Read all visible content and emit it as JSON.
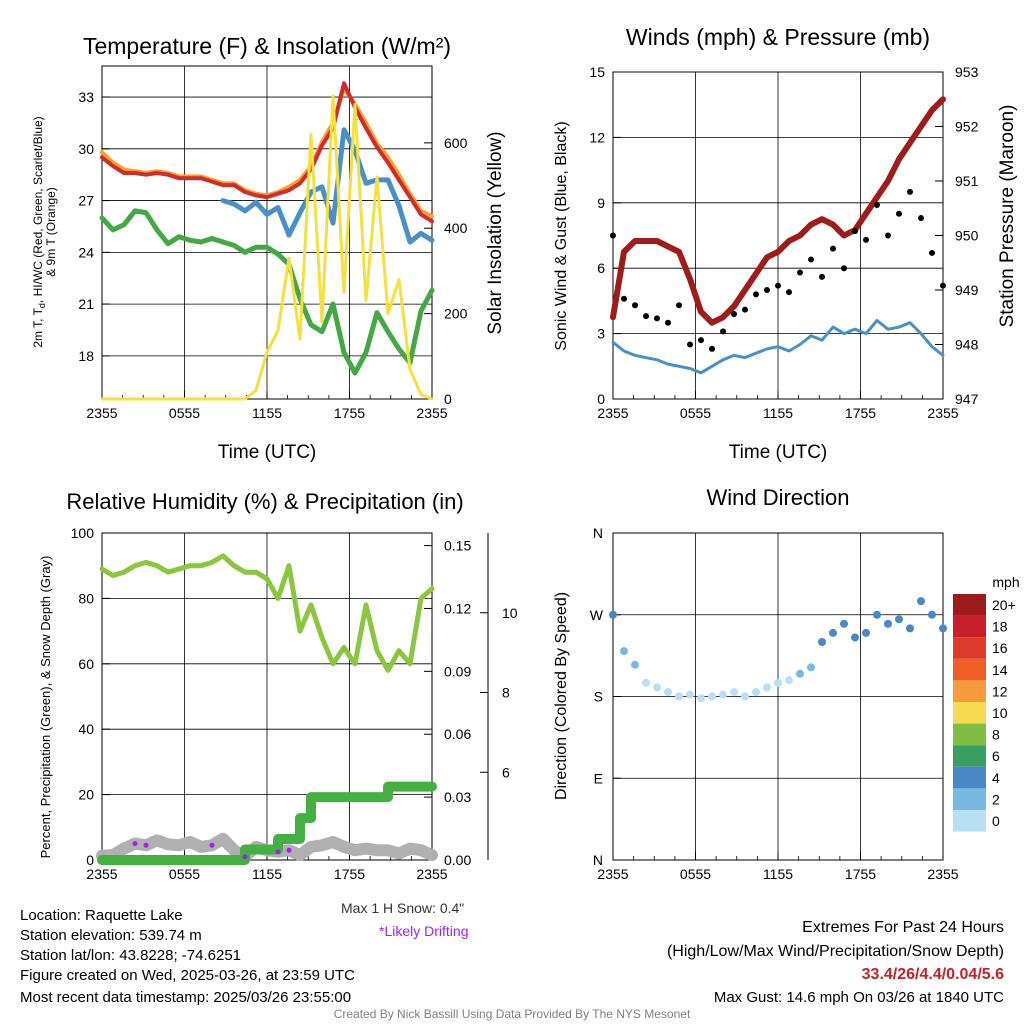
{
  "chart_data": [
    {
      "id": "temp",
      "type": "line",
      "title": "Temperature (F) & Insolation (W/m²)",
      "ylabel": "2m T, Td, HI/WC (Red, Green, Scarlet/Blue) & 9m T (Orange)",
      "ylabel_line1": "2m T, T",
      "ylabel_sub": "d",
      "ylabel_line1_rest": ", HI/WC (Red, Green, Scarlet/Blue)",
      "ylabel_line2": "& 9m T (Orange)",
      "y2label": "Solar Insolation (Yellow)",
      "xlabel": "Time (UTC)",
      "xticks": [
        "2355",
        "0555",
        "1155",
        "1755",
        "2355"
      ],
      "ylim": [
        15.5,
        34.8
      ],
      "yticks": [
        18,
        21,
        24,
        27,
        30,
        33
      ],
      "y2lim": [
        0,
        780
      ],
      "y2ticks": [
        0,
        200,
        400,
        600
      ],
      "series": [
        {
          "color": "#f6a030",
          "values": [
            29.8,
            29.2,
            28.8,
            28.7,
            28.6,
            28.7,
            28.6,
            28.4,
            28.4,
            28.4,
            28.2,
            28.0,
            28.0,
            27.6,
            27.4,
            27.3,
            27.5,
            27.8,
            28.2,
            29.0,
            30.4,
            31.5,
            33.5,
            32.6,
            31.5,
            30.3,
            29.5,
            28.5,
            27.4,
            26.4,
            26.1
          ]
        },
        {
          "color": "#d42a2a",
          "values": [
            29.5,
            29.0,
            28.6,
            28.6,
            28.5,
            28.6,
            28.5,
            28.3,
            28.3,
            28.3,
            28.1,
            27.9,
            27.9,
            27.5,
            27.3,
            27.2,
            27.4,
            27.6,
            28.0,
            28.8,
            30.2,
            31.2,
            33.8,
            32.4,
            31.2,
            30.1,
            29.2,
            28.2,
            27.2,
            26.2,
            25.8
          ]
        },
        {
          "color": "#4a90c8",
          "values": [
            27.0,
            null,
            null,
            null,
            null,
            null,
            null,
            null,
            null,
            null,
            null,
            27.0,
            26.8,
            26.4,
            26.9,
            26.2,
            26.6,
            25.0,
            26.3,
            27.5,
            27.8,
            25.7,
            31.1,
            29.9,
            28.0,
            28.2,
            28.2,
            26.7,
            24.6,
            25.1,
            24.7
          ]
        },
        {
          "color": "#44a844",
          "values": [
            26.0,
            25.3,
            25.6,
            26.4,
            26.3,
            25.3,
            24.5,
            24.9,
            24.7,
            24.6,
            24.8,
            24.6,
            24.4,
            24.0,
            24.3,
            24.3,
            23.9,
            23.3,
            21.3,
            19.8,
            19.4,
            21.0,
            18.2,
            17.0,
            18.2,
            20.5,
            19.4,
            18.4,
            17.6,
            20.6,
            21.8
          ]
        },
        {
          "color": "#f5e13c",
          "y2": true,
          "values": [
            0,
            0,
            0,
            0,
            0,
            0,
            0,
            0,
            0,
            0,
            0,
            0,
            0,
            0,
            20,
            110,
            160,
            330,
            140,
            620,
            180,
            710,
            250,
            690,
            230,
            520,
            200,
            280,
            70,
            10,
            0
          ]
        }
      ]
    },
    {
      "id": "winds",
      "type": "line",
      "title": "Winds (mph) & Pressure (mb)",
      "ylabel": "Sonic Wind & Gust (Blue, Black)",
      "y2label": "Station Pressure (Maroon)",
      "xlabel": "Time (UTC)",
      "xticks": [
        "2355",
        "0555",
        "1155",
        "1755",
        "2355"
      ],
      "ylim": [
        0,
        15
      ],
      "yticks": [
        0,
        3,
        6,
        9,
        12,
        15
      ],
      "y2lim": [
        947,
        953
      ],
      "y2ticks": [
        947,
        948,
        949,
        950,
        951,
        952,
        953
      ],
      "series": [
        {
          "color": "#4a90c8",
          "values": [
            2.6,
            2.2,
            2.0,
            1.9,
            1.8,
            1.6,
            1.5,
            1.4,
            1.2,
            1.5,
            1.8,
            2.0,
            1.9,
            2.1,
            2.3,
            2.4,
            2.2,
            2.5,
            2.9,
            2.7,
            3.3,
            3.0,
            3.2,
            3.0,
            3.6,
            3.2,
            3.3,
            3.5,
            3.0,
            2.4,
            2.0
          ]
        },
        {
          "color": "#a01c1c",
          "y2": true,
          "values": [
            948.5,
            949.7,
            949.9,
            949.9,
            949.9,
            949.8,
            949.7,
            949.2,
            948.6,
            948.4,
            948.5,
            948.7,
            949.0,
            949.3,
            949.6,
            949.7,
            949.9,
            950.0,
            950.2,
            950.3,
            950.2,
            950.0,
            950.1,
            950.4,
            950.7,
            951.0,
            951.4,
            951.7,
            952.0,
            952.3,
            952.5
          ]
        },
        {
          "color": "#000000",
          "scatter": true,
          "values": [
            7.5,
            4.6,
            4.3,
            3.8,
            3.7,
            3.5,
            4.3,
            2.5,
            2.7,
            2.3,
            3.1,
            3.9,
            4.1,
            4.8,
            5.0,
            5.2,
            4.9,
            5.8,
            6.4,
            5.6,
            6.9,
            6.0,
            7.7,
            7.3,
            8.9,
            7.5,
            8.5,
            9.5,
            8.3,
            6.7,
            5.2
          ]
        }
      ]
    },
    {
      "id": "rh",
      "type": "line",
      "title": "Relative Humidity (%) & Precipitation (in)",
      "ylabel": "Percent, Precipitation (Green), & Snow Depth (Gray)",
      "ylim": [
        0,
        100
      ],
      "yticks": [
        0,
        20,
        40,
        60,
        80,
        100
      ],
      "y2lim": [
        0,
        0.156
      ],
      "y2ticks": [
        "0.00",
        "0.03",
        "0.06",
        "0.09",
        "0.12",
        "0.15"
      ],
      "y3lim": [
        3.8,
        12
      ],
      "y3ticks": [
        6,
        8,
        10
      ],
      "xticks": [
        "2355",
        "0555",
        "1155",
        "1755",
        "2355"
      ],
      "series": [
        {
          "color": "#8cc63f",
          "values": [
            89,
            87,
            88,
            90,
            91,
            90,
            88,
            89,
            90,
            90,
            91,
            93,
            90,
            88,
            88,
            86,
            80,
            90,
            70,
            78,
            68,
            60,
            65,
            60,
            78,
            64,
            58,
            64,
            60,
            80,
            83
          ]
        },
        {
          "color": "#b0b0b0",
          "values": [
            1.3,
            1.5,
            3.5,
            5.0,
            4.5,
            6.0,
            4.8,
            4.5,
            5.5,
            4.0,
            4.5,
            6.5,
            3.0,
            1.0,
            4.0,
            3.0,
            2.5,
            3.0,
            1.5,
            4.0,
            4.5,
            5.5,
            4.0,
            3.0,
            3.5,
            3.0,
            3.0,
            2.0,
            3.5,
            3.0,
            1.5
          ]
        },
        {
          "color": "#44b044",
          "step": true,
          "y2": true,
          "values": [
            0.0,
            0.0,
            0.0,
            0.0,
            0.0,
            0.0,
            0.0,
            0.0,
            0.0,
            0.0,
            0.0,
            0.0,
            0.0,
            0.005,
            0.005,
            0.005,
            0.01,
            0.01,
            0.02,
            0.03,
            0.03,
            0.03,
            0.03,
            0.03,
            0.03,
            0.03,
            0.035,
            0.035,
            0.035,
            0.035,
            0.035
          ]
        }
      ]
    },
    {
      "id": "dir",
      "type": "scatter",
      "title": "Wind Direction",
      "ylabel": "Direction (Colored By Speed)",
      "yticks": [
        "N",
        "E",
        "S",
        "W",
        "N"
      ],
      "xticks": [
        "2355",
        "0555",
        "1155",
        "1755",
        "2355"
      ],
      "ylim": [
        0,
        360
      ],
      "legend_title": "mph",
      "legend_labels": [
        "20+",
        "18",
        "16",
        "14",
        "12",
        "10",
        "8",
        "6",
        "4",
        "2",
        "0"
      ],
      "legend_colors": [
        "#9e1a1e",
        "#c8202a",
        "#dc3a2a",
        "#ef5f28",
        "#f79a3d",
        "#f6db52",
        "#7fbd45",
        "#3a9e62",
        "#4a87c6",
        "#7ab8e2",
        "#b7e0f5"
      ],
      "values": [
        270,
        230,
        215,
        195,
        190,
        185,
        180,
        182,
        178,
        180,
        182,
        185,
        180,
        185,
        190,
        195,
        198,
        205,
        212,
        240,
        250,
        260,
        245,
        250,
        270,
        260,
        265,
        255,
        285,
        270,
        255
      ]
    }
  ],
  "info": {
    "location": "Location: Raquette Lake",
    "elevation": "Station elevation: 539.74 m",
    "latlon": "Station lat/lon: 43.8228; -74.6251",
    "created": "Figure created on Wed, 2025-03-26, at 23:59 UTC",
    "recent": "Most recent data timestamp: 2025/03/26 23:55:00",
    "max_snow": "Max 1 H Snow: 0.4\"",
    "drifting": "*Likely Drifting",
    "extremes_title": "Extremes For Past 24 Hours",
    "extremes_sub": "(High/Low/Max Wind/Precipitation/Snow Depth)",
    "extremes_values": "33.4/26/4.4/0.04/5.6",
    "max_gust": "Max Gust: 14.6 mph On 03/26 at 1840 UTC",
    "credit": "Created By Nick Bassill Using Data Provided By The NYS Mesonet"
  },
  "colors": {
    "drifting": "#a020f0",
    "extremes": "#c8202a",
    "credit": "#808080"
  }
}
